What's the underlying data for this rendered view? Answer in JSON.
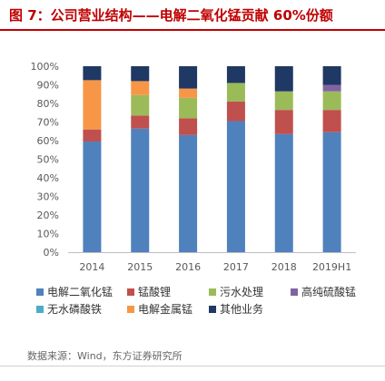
{
  "header": {
    "title": "图 7：公司营业结构——电解二氧化锰贡献 60%份额"
  },
  "footer": {
    "source": "数据来源：Wind，东方证券研究所"
  },
  "colors": {
    "title_red": "#c00000",
    "series": [
      "#4f81bd",
      "#c0504d",
      "#9bbb59",
      "#8064a2",
      "#4bacc6",
      "#f79646",
      "#1f3864"
    ]
  },
  "chart_data": {
    "type": "bar",
    "stacked": true,
    "title": "图 7：公司营业结构——电解二氧化锰贡献 60%份额",
    "categories": [
      "2014",
      "2015",
      "2016",
      "2017",
      "2018",
      "2019H1"
    ],
    "ylim": [
      0,
      100
    ],
    "yticks": [
      "0%",
      "10%",
      "20%",
      "30%",
      "40%",
      "50%",
      "60%",
      "70%",
      "80%",
      "90%",
      "100%"
    ],
    "grid": false,
    "legend_position": "bottom",
    "series": [
      {
        "name": "电解二氧化锰",
        "values": [
          59.5,
          66.5,
          63,
          70.5,
          63.5,
          64.5
        ]
      },
      {
        "name": "锰酸锂",
        "values": [
          6.5,
          7,
          9,
          10.5,
          13,
          12
        ]
      },
      {
        "name": "污水处理",
        "values": [
          0,
          11,
          11,
          10,
          10,
          10
        ]
      },
      {
        "name": "高纯硫酸锰",
        "values": [
          0,
          0,
          0,
          0,
          0,
          3.5
        ]
      },
      {
        "name": "无水磷酸铁",
        "values": [
          0,
          0,
          0,
          0,
          0,
          0
        ]
      },
      {
        "name": "电解金属锰",
        "values": [
          26.5,
          7.5,
          5,
          0,
          0,
          0
        ]
      },
      {
        "name": "其他业务",
        "values": [
          7.5,
          8,
          12,
          9,
          13.5,
          10
        ]
      }
    ]
  }
}
